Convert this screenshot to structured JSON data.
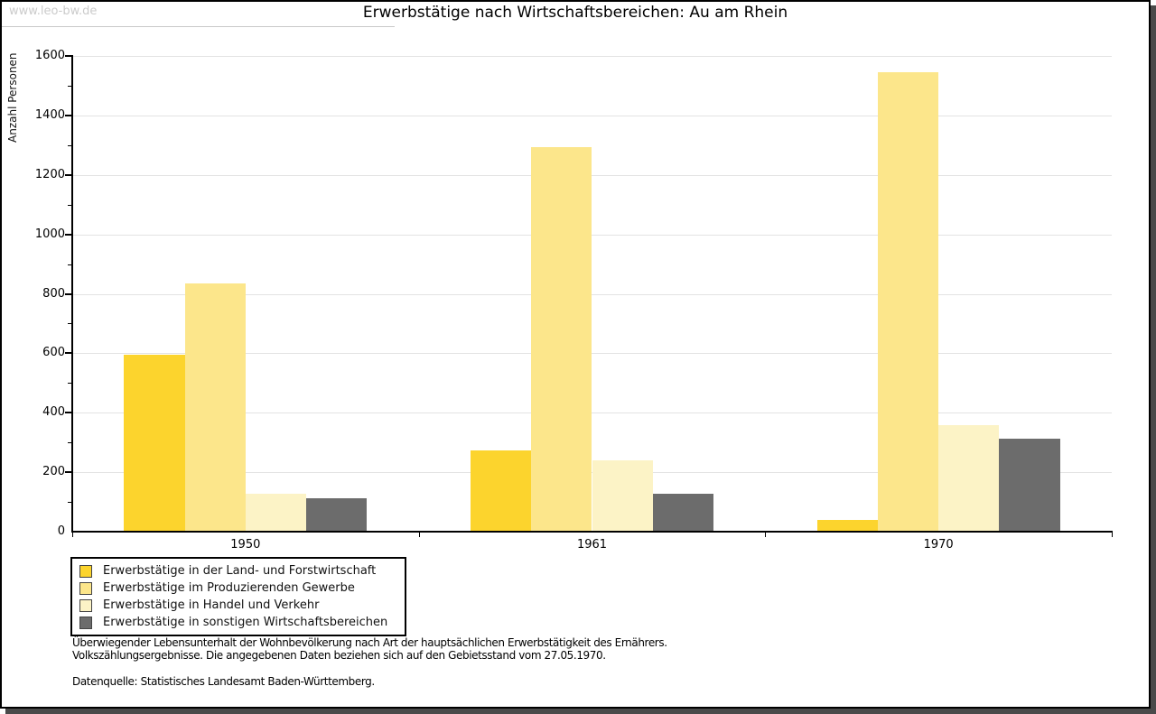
{
  "header": {
    "watermark": "www.leo-bw.de",
    "title": "Erwerbstätige nach Wirtschaftsbereichen: Au am Rhein"
  },
  "chart_data": {
    "type": "bar",
    "title": "Erwerbstätige nach Wirtschaftsbereichen: Au am Rhein",
    "ylabel": "Anzahl Personen",
    "xlabel": "",
    "ylim": [
      0,
      1600
    ],
    "ytick_step": 200,
    "ytick_minor_step": 100,
    "grid": true,
    "legend_position": "bottom-left",
    "categories": [
      "1950",
      "1961",
      "1970"
    ],
    "series": [
      {
        "key": "land-forstwirtschaft",
        "name": "Erwerbstätige in der Land- und Forstwirtschaft",
        "color": "#fcd42d",
        "values": [
          595,
          272,
          40
        ]
      },
      {
        "key": "produzierendes-gewerbe",
        "name": "Erwerbstätige im Produzierenden Gewerbe",
        "color": "#fce68b",
        "values": [
          835,
          1292,
          1545
        ]
      },
      {
        "key": "handel-verkehr",
        "name": "Erwerbstätige in Handel und Verkehr",
        "color": "#fcf3c6",
        "values": [
          128,
          241,
          357
        ]
      },
      {
        "key": "sonstige-wirtschaftsbereiche",
        "name": "Erwerbstätige in sonstigen Wirtschaftsbereichen",
        "color": "#6c6c6c",
        "values": [
          112,
          127,
          313
        ]
      }
    ]
  },
  "footer": {
    "note_line1": "Überwiegender Lebensunterhalt der Wohnbevölkerung nach Art der hauptsächlichen Erwerbstätigkeit des Ernährers.",
    "note_line2": "Volkszählungsergebnisse. Die angegebenen Daten beziehen sich auf den Gebietsstand vom 27.05.1970.",
    "source": "Datenquelle: Statistisches Landesamt Baden-Württemberg."
  }
}
